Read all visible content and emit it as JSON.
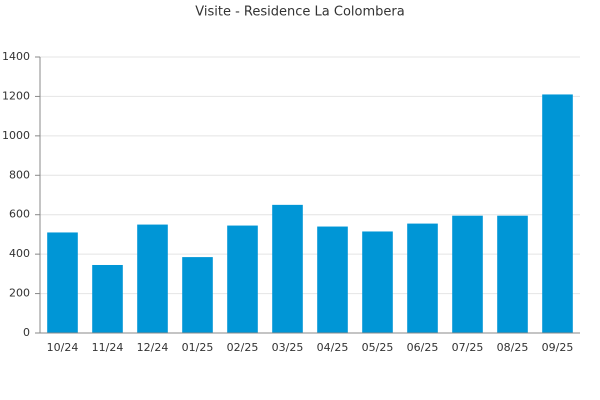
{
  "chart_data": {
    "type": "bar",
    "title": "Visite - Residence La Colombera",
    "categories": [
      "10/24",
      "11/24",
      "12/24",
      "01/25",
      "02/25",
      "03/25",
      "04/25",
      "05/25",
      "06/25",
      "07/25",
      "08/25",
      "09/25"
    ],
    "values": [
      510,
      345,
      550,
      385,
      545,
      650,
      540,
      515,
      555,
      595,
      595,
      1210
    ],
    "color": "#0096d6",
    "ylim": [
      0,
      1400
    ],
    "yticks": [
      0,
      200,
      400,
      600,
      800,
      1000,
      1200,
      1400
    ],
    "grid": true
  }
}
